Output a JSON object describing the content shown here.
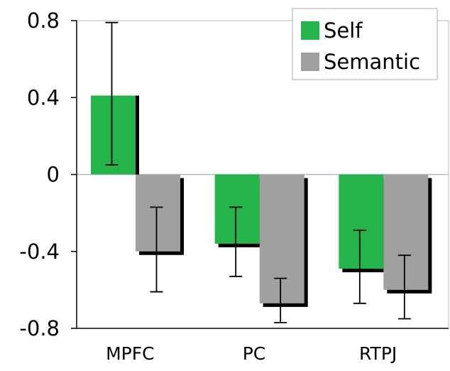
{
  "chart_data": {
    "type": "bar",
    "title": "",
    "xlabel": "",
    "ylabel": "",
    "categories": [
      "MPFC",
      "PC",
      "RTPJ"
    ],
    "series": [
      {
        "name": "Self",
        "values": [
          0.41,
          -0.36,
          -0.49
        ],
        "error_low": [
          0.05,
          -0.53,
          -0.67
        ],
        "error_high": [
          0.79,
          -0.17,
          -0.29
        ]
      },
      {
        "name": "Semantic",
        "values": [
          -0.4,
          -0.67,
          -0.6
        ],
        "error_low": [
          -0.61,
          -0.77,
          -0.75
        ],
        "error_high": [
          -0.17,
          -0.54,
          -0.42
        ]
      }
    ],
    "ylim": [
      -0.8,
      0.8
    ],
    "yticks": [
      -0.8,
      -0.4,
      0,
      0.4,
      0.8
    ],
    "ytick_labels": [
      "-0.8",
      "-0.4",
      "0",
      "0.4",
      "0.8"
    ],
    "grid": false,
    "legend_position": "top-right",
    "colors": {
      "Self": "#25b44a",
      "Semantic": "#a0a0a0",
      "shadow": "#000000",
      "axis": "#000000",
      "zero_line": "#b8b8b8",
      "border": "#b8b8b8"
    }
  }
}
